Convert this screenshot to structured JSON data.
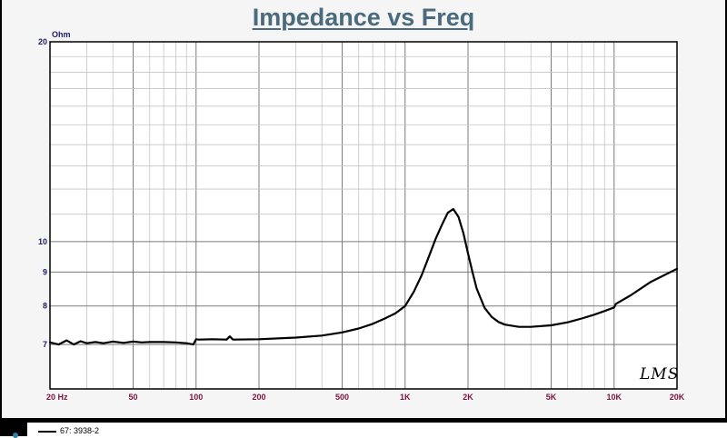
{
  "window": {
    "title": "Impedance vs Freq"
  },
  "chart_data": {
    "type": "line",
    "title": "Impedance vs Freq",
    "ylabel": "Ohm",
    "xscale": "log",
    "yscale": "log",
    "xlim": [
      20,
      20000
    ],
    "ylim": [
      6,
      20
    ],
    "grid": true,
    "x_ticks": [
      {
        "value": 20,
        "label": "20 Hz"
      },
      {
        "value": 50,
        "label": "50"
      },
      {
        "value": 100,
        "label": "100"
      },
      {
        "value": 200,
        "label": "200"
      },
      {
        "value": 500,
        "label": "500"
      },
      {
        "value": 1000,
        "label": "1K"
      },
      {
        "value": 2000,
        "label": "2K"
      },
      {
        "value": 5000,
        "label": "5K"
      },
      {
        "value": 10000,
        "label": "10K"
      },
      {
        "value": 20000,
        "label": "20K"
      }
    ],
    "y_ticks": [
      {
        "value": 7,
        "label": "7"
      },
      {
        "value": 8,
        "label": "8"
      },
      {
        "value": 9,
        "label": "9"
      },
      {
        "value": 10,
        "label": "10"
      },
      {
        "value": 20,
        "label": "20"
      }
    ],
    "legend": {
      "placement": "bottom"
    },
    "series": [
      {
        "name": "67: 3938-2",
        "color": "#000000",
        "x": [
          20,
          22,
          24,
          26,
          28,
          30,
          33,
          36,
          40,
          45,
          50,
          55,
          60,
          70,
          80,
          90,
          97,
          100,
          103,
          120,
          140,
          145,
          150,
          200,
          300,
          400,
          500,
          600,
          700,
          800,
          900,
          1000,
          1100,
          1200,
          1300,
          1400,
          1500,
          1600,
          1700,
          1800,
          1900,
          2000,
          2100,
          2200,
          2400,
          2600,
          2800,
          3000,
          3500,
          4000,
          5000,
          6000,
          7000,
          8000,
          9000,
          10000,
          10200,
          12000,
          15000,
          20000
        ],
        "y": [
          7.05,
          7.0,
          7.1,
          7.0,
          7.08,
          7.03,
          7.06,
          7.03,
          7.07,
          7.04,
          7.07,
          7.05,
          7.06,
          7.06,
          7.05,
          7.03,
          7.0,
          7.13,
          7.12,
          7.13,
          7.12,
          7.2,
          7.12,
          7.13,
          7.17,
          7.22,
          7.3,
          7.4,
          7.52,
          7.66,
          7.8,
          8.0,
          8.4,
          8.9,
          9.5,
          10.1,
          10.6,
          11.05,
          11.2,
          10.9,
          10.3,
          9.6,
          9.0,
          8.5,
          7.95,
          7.7,
          7.57,
          7.5,
          7.44,
          7.44,
          7.48,
          7.56,
          7.66,
          7.76,
          7.86,
          7.96,
          8.06,
          8.3,
          8.7,
          9.1
        ]
      }
    ]
  },
  "watermark": "LMS"
}
